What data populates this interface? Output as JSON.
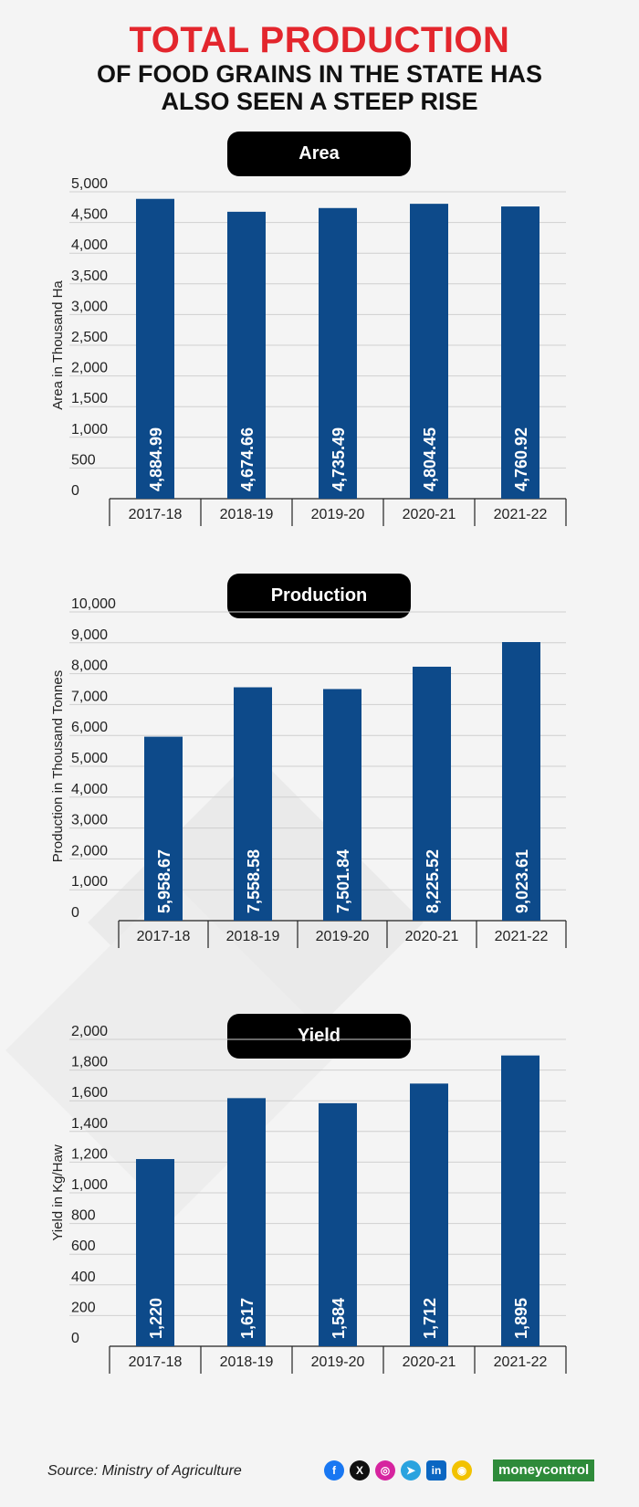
{
  "header": {
    "title": "TOTAL PRODUCTION",
    "subtitle_line1": "OF FOOD GRAINS IN THE STATE HAS",
    "subtitle_line2": "ALSO SEEN A STEEP RISE"
  },
  "chart_data": [
    {
      "type": "bar",
      "title": "Area",
      "ylabel": "Area in Thousand Ha",
      "categories": [
        "2017-18",
        "2018-19",
        "2019-20",
        "2020-21",
        "2021-22"
      ],
      "values": [
        4884.99,
        4674.66,
        4735.49,
        4804.45,
        4760.92
      ],
      "value_labels": [
        "4,884.99",
        "4,674.66",
        "4,735.49",
        "4,804.45",
        "4,760.92"
      ],
      "ylim": [
        0,
        5000
      ],
      "yticks": [
        "0",
        "500",
        "1,000",
        "1,500",
        "2,000",
        "2,500",
        "3,000",
        "3,500",
        "4,000",
        "4,500",
        "5,000"
      ],
      "bar_color": "#0d4a8a",
      "grid": true
    },
    {
      "type": "bar",
      "title": "Production",
      "ylabel": "Production in Thousand Tonnes",
      "categories": [
        "2017-18",
        "2018-19",
        "2019-20",
        "2020-21",
        "2021-22"
      ],
      "values": [
        5958.67,
        7558.58,
        7501.84,
        8225.52,
        9023.61
      ],
      "value_labels": [
        "5,958.67",
        "7,558.58",
        "7,501.84",
        "8,225.52",
        "9,023.61"
      ],
      "ylim": [
        0,
        10000
      ],
      "yticks": [
        "0",
        "1,000",
        "2,000",
        "3,000",
        "4,000",
        "5,000",
        "6,000",
        "7,000",
        "8,000",
        "9,000",
        "10,000"
      ],
      "bar_color": "#0d4a8a",
      "grid": true
    },
    {
      "type": "bar",
      "title": "Yield",
      "ylabel": "Yield in Kg/Haw",
      "categories": [
        "2017-18",
        "2018-19",
        "2019-20",
        "2020-21",
        "2021-22"
      ],
      "values": [
        1220,
        1617,
        1584,
        1712,
        1895
      ],
      "value_labels": [
        "1,220",
        "1,617",
        "1,584",
        "1,712",
        "1,895"
      ],
      "ylim": [
        0,
        2000
      ],
      "yticks": [
        "0",
        "200",
        "400",
        "600",
        "800",
        "1,000",
        "1,200",
        "1,400",
        "1,600",
        "1,800",
        "2,000"
      ],
      "bar_color": "#0d4a8a",
      "grid": true
    }
  ],
  "footer": {
    "source": "Source: Ministry of Agriculture",
    "social_icons": [
      "facebook-icon",
      "x-icon",
      "instagram-icon",
      "telegram-icon",
      "linkedin-icon",
      "snapchat-icon"
    ],
    "brand": "moneycontrol"
  }
}
